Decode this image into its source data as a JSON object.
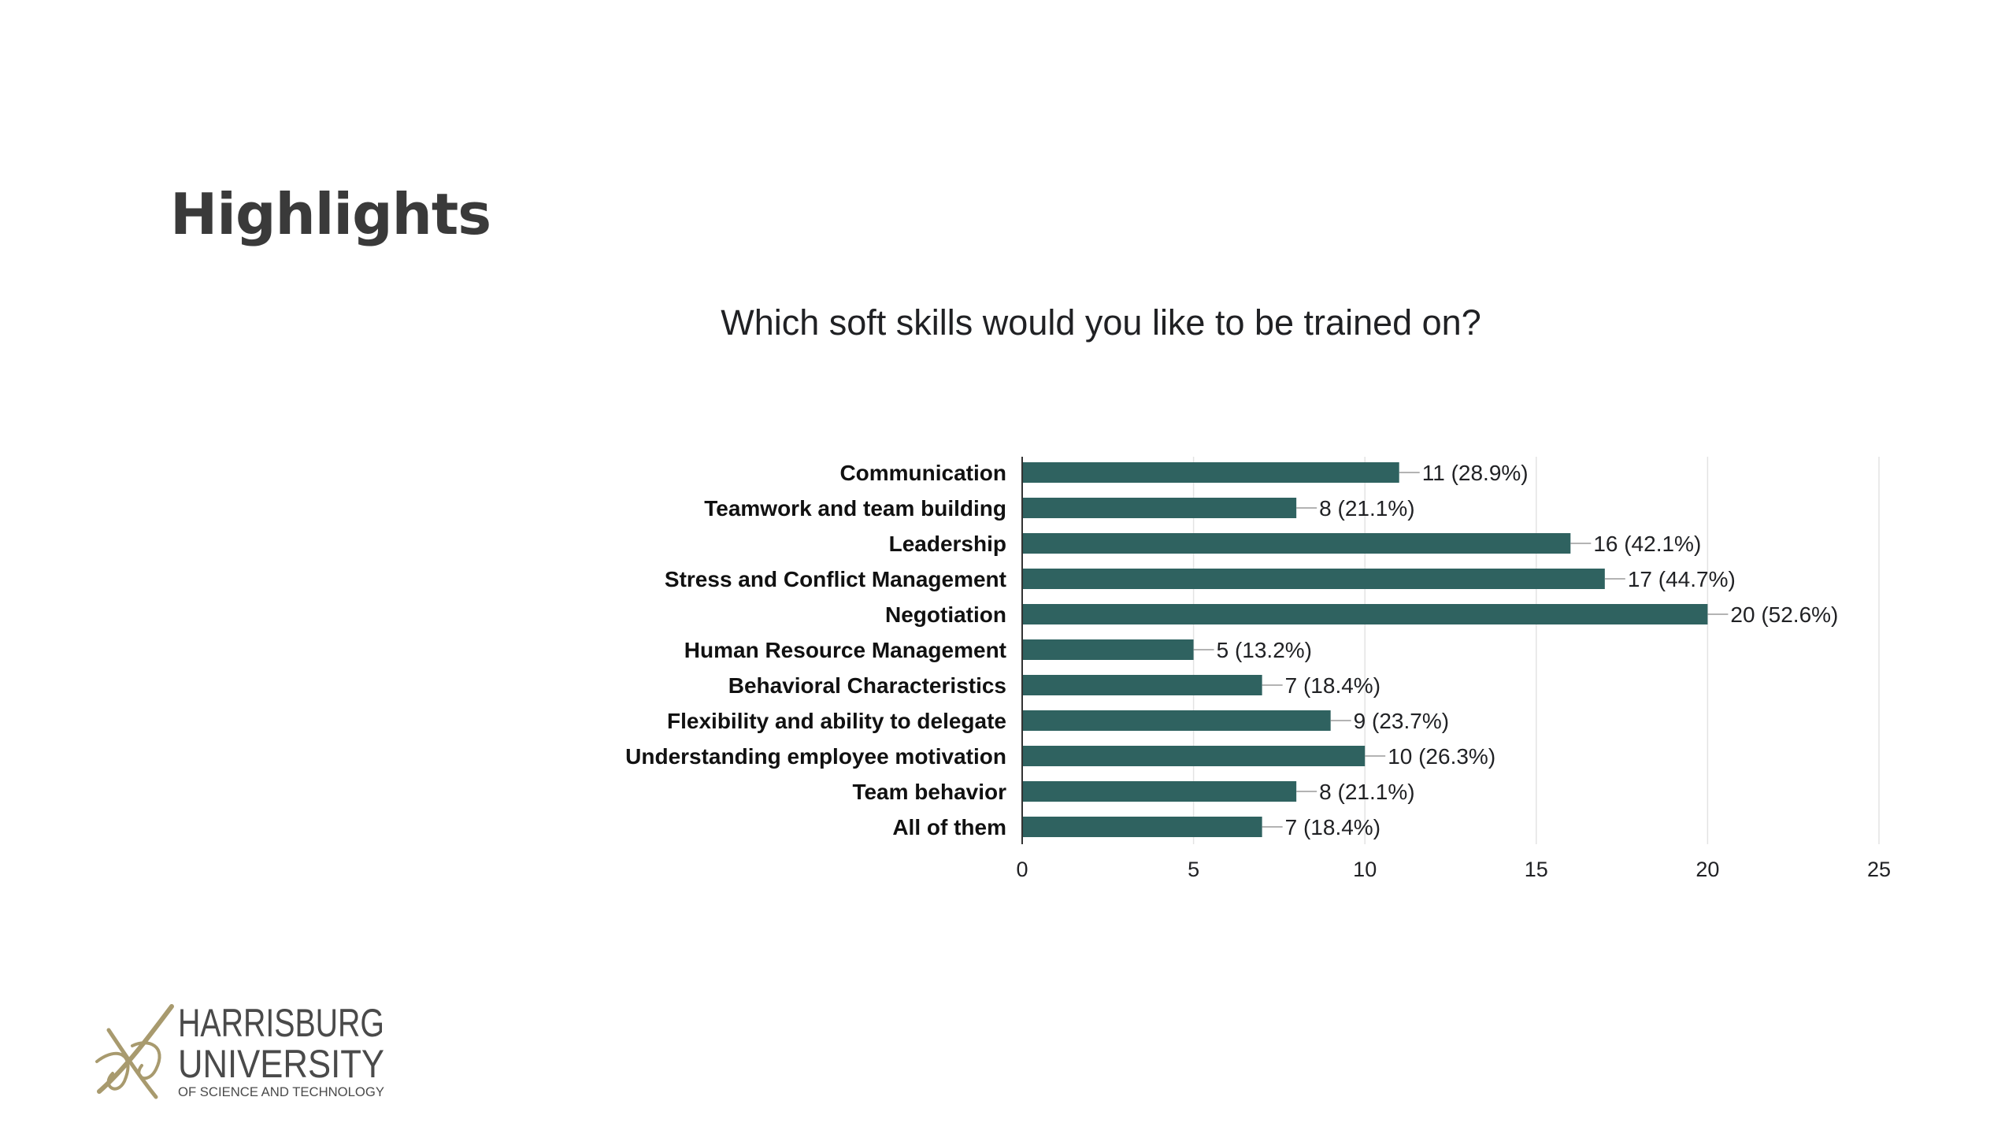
{
  "slide": {
    "title": "Highlights"
  },
  "logo": {
    "line1": "HARRISBURG",
    "line2": "UNIVERSITY",
    "line3": "OF SCIENCE AND TECHNOLOGY"
  },
  "chart_data": {
    "type": "bar",
    "orientation": "horizontal",
    "title": "Which soft skills would you like to be trained on?",
    "categories": [
      "Communication",
      "Teamwork and team building",
      "Leadership",
      "Stress and Conflict Management",
      "Negotiation",
      "Human Resource Management",
      "Behavioral Characteristics",
      "Flexibility and ability to delegate",
      "Understanding employee motivation",
      "Team behavior",
      "All of them"
    ],
    "values": [
      11,
      8,
      16,
      17,
      20,
      5,
      7,
      9,
      10,
      8,
      7
    ],
    "data_labels": [
      "11 (28.9%)",
      "8 (21.1%)",
      "16 (42.1%)",
      "17 (44.7%)",
      "20 (52.6%)",
      "5 (13.2%)",
      "7 (18.4%)",
      "9 (23.7%)",
      "10 (26.3%)",
      "8 (21.1%)",
      "7 (18.4%)"
    ],
    "xlim": [
      0,
      25
    ],
    "xticks": [
      "0",
      "5",
      "10",
      "15",
      "20",
      "25"
    ],
    "grid": true,
    "bar_color": "#2f6260"
  }
}
